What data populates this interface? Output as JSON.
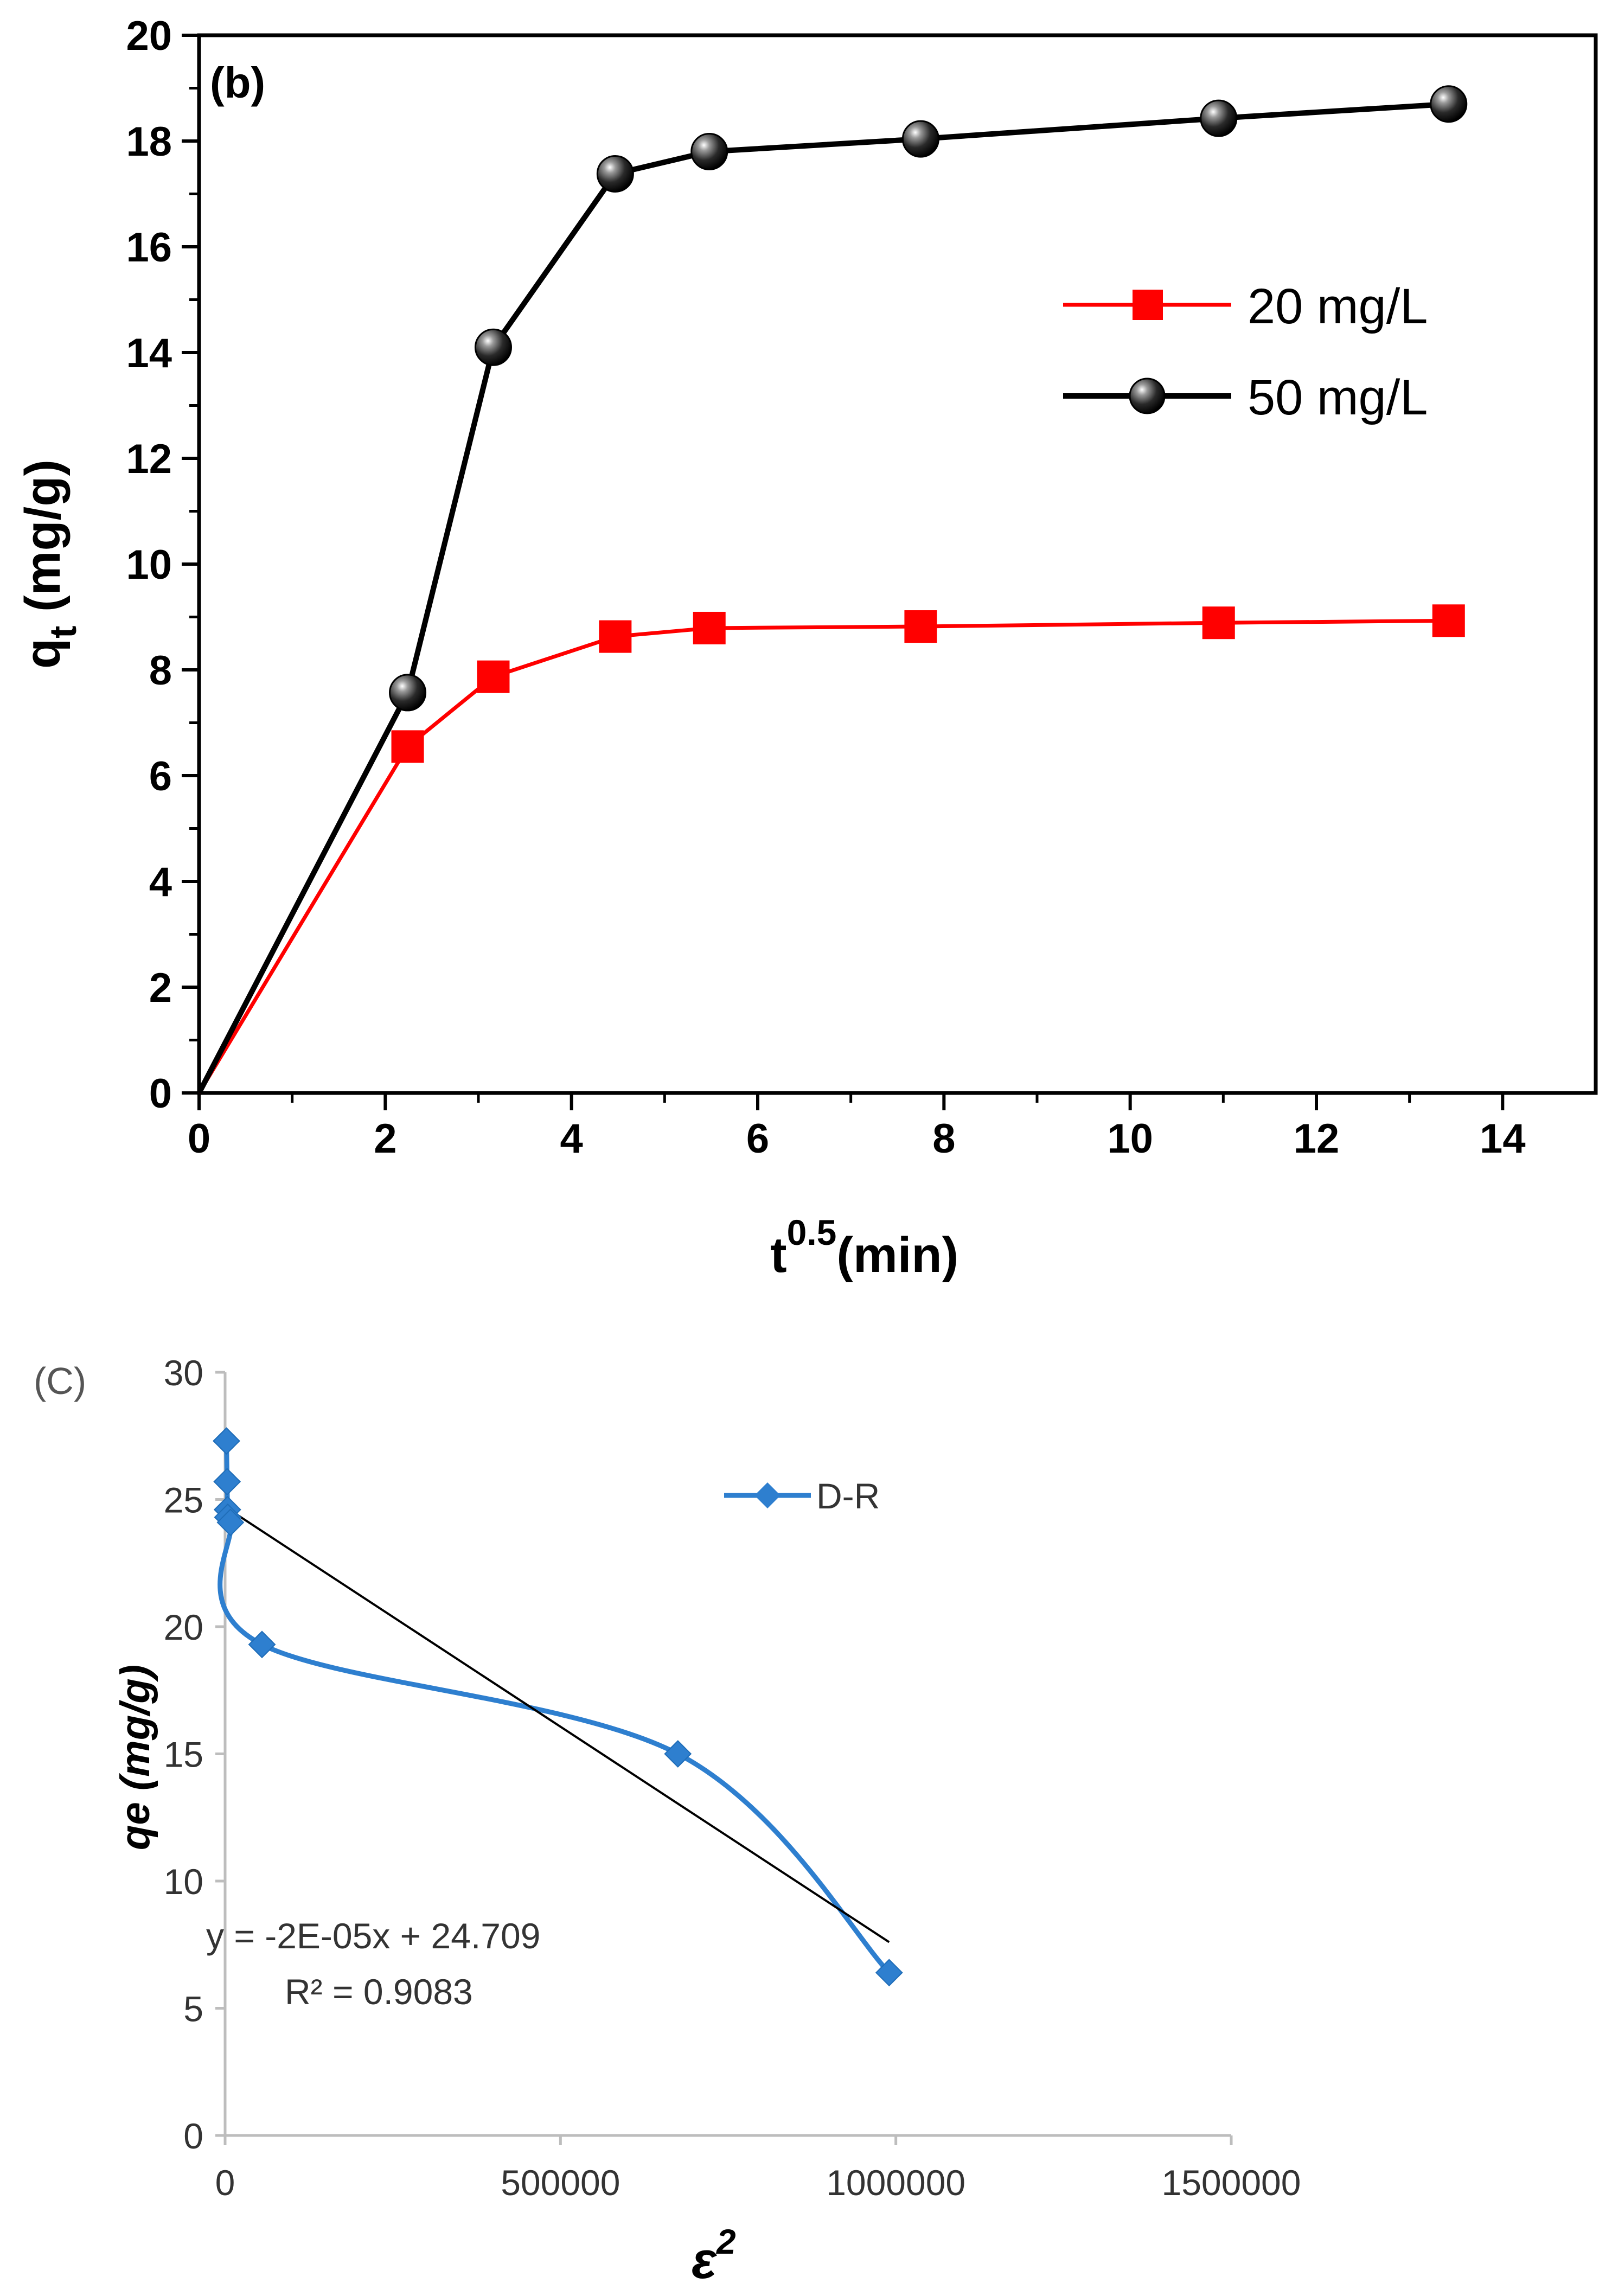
{
  "chart_data": [
    {
      "id": "panel-b",
      "type": "line",
      "panel_label": "(b)",
      "xlabel_base": "t",
      "xlabel_sup": "0.5",
      "xlabel_rest": "(min)",
      "ylabel_base": "q",
      "ylabel_sub": "t",
      "ylabel_rest": " (mg/g)",
      "xlim": [
        0,
        15
      ],
      "ylim": [
        0,
        20
      ],
      "xticks": [
        0,
        2,
        4,
        6,
        8,
        10,
        12,
        14
      ],
      "yticks": [
        0,
        2,
        4,
        6,
        8,
        10,
        12,
        14,
        16,
        18,
        20
      ],
      "grid": false,
      "legend_position": "upper-right",
      "series": [
        {
          "name": "20 mg/L",
          "color": "#ff0000",
          "marker": "square",
          "x": [
            0,
            2.24,
            3.16,
            4.47,
            5.48,
            7.75,
            10.95,
            13.42
          ],
          "y": [
            0,
            6.55,
            7.87,
            8.63,
            8.79,
            8.82,
            8.89,
            8.93
          ]
        },
        {
          "name": "50 mg/L",
          "color": "#000000",
          "marker": "sphere",
          "x": [
            0,
            2.24,
            3.16,
            4.47,
            5.48,
            7.75,
            10.95,
            13.42
          ],
          "y": [
            0,
            7.57,
            14.1,
            17.38,
            17.8,
            18.04,
            18.43,
            18.7
          ]
        }
      ]
    },
    {
      "id": "panel-c",
      "type": "scatter",
      "panel_label": "(C)",
      "xlabel": "ε",
      "xlabel_sup": "2",
      "ylabel": "qe (mg/g)",
      "xlim": [
        0,
        1500000
      ],
      "ylim": [
        0,
        30
      ],
      "xticks": [
        0,
        500000,
        1000000,
        1500000
      ],
      "yticks": [
        0,
        5,
        10,
        15,
        20,
        25,
        30
      ],
      "grid": false,
      "legend_position": "top-right",
      "series": [
        {
          "name": "D-R",
          "color": "#2e7fcf",
          "marker": "diamond",
          "x": [
            2000,
            3000,
            3500,
            4000,
            8000,
            55000,
            675000,
            990000
          ],
          "y": [
            27.3,
            25.7,
            24.6,
            24.3,
            24.1,
            19.3,
            15.0,
            6.4
          ]
        }
      ],
      "trendline": {
        "x": [
          0,
          990000
        ],
        "y": [
          24.709,
          7.6
        ],
        "equation": "y = -2E-05x + 24.709",
        "r2": "R² = 0.9083"
      }
    }
  ]
}
